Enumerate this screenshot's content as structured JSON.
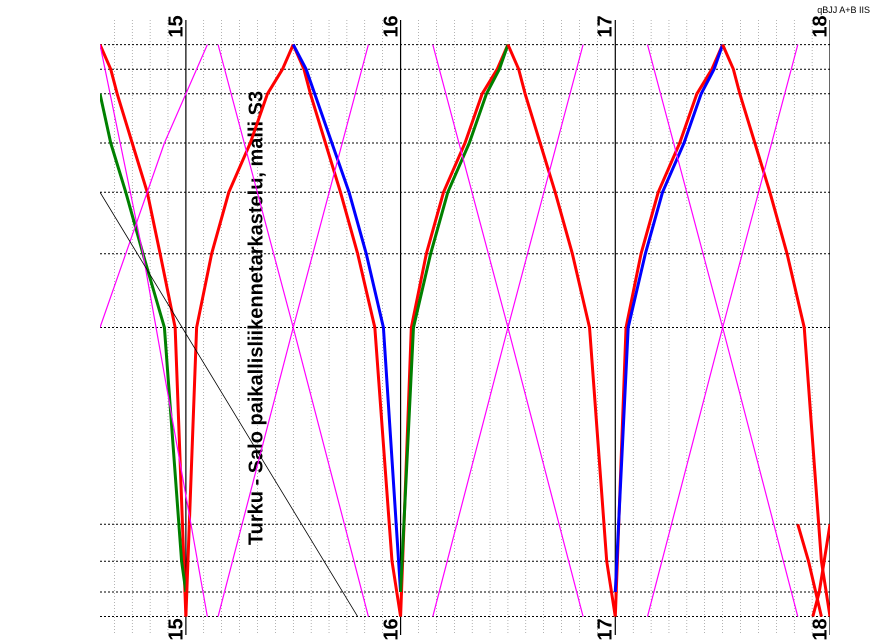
{
  "title": "Turku - Salo paikallisliikennetarkastelu, malli S3",
  "corner_text": "qBJJ A+B IIS",
  "xlim": [
    14.6,
    18
  ],
  "ylim": [
    0,
    100
  ],
  "xtick_labels": [
    "15",
    "16",
    "17",
    "18"
  ],
  "xtick_positions": [
    15,
    16,
    17,
    18
  ],
  "background_color": "#ffffff",
  "grid_major_color": "#000000",
  "grid_minor_color": "#000000",
  "grid_major_width": 1.2,
  "grid_minor_width": 0.6,
  "station_positions": [
    4,
    8,
    12,
    20,
    28,
    38,
    50,
    82,
    88,
    93,
    97
  ],
  "axis": {
    "label_fontsize": 20,
    "title_fontsize": 20
  },
  "colors": {
    "red": "#ff0000",
    "blue": "#0000ff",
    "green": "#008000",
    "magenta": "#ff00ff",
    "black": "#000000"
  },
  "line_widths": {
    "thick": 3,
    "thin": 1.2,
    "hair": 0.8
  },
  "trains": [
    {
      "color": "#ff0000",
      "width": 3,
      "points": [
        [
          14.6,
          4
        ],
        [
          14.65,
          8
        ],
        [
          14.68,
          12
        ],
        [
          14.75,
          20
        ],
        [
          14.82,
          28
        ],
        [
          14.88,
          38
        ],
        [
          14.95,
          50
        ],
        [
          15.0,
          97
        ]
      ]
    },
    {
      "color": "#008000",
      "width": 3,
      "points": [
        [
          14.6,
          12
        ],
        [
          14.65,
          20
        ],
        [
          14.72,
          28
        ],
        [
          14.8,
          38
        ],
        [
          14.9,
          50
        ],
        [
          14.98,
          88
        ],
        [
          15.0,
          93
        ]
      ]
    },
    {
      "color": "#ff0000",
      "width": 3,
      "points": [
        [
          15.0,
          97
        ],
        [
          15.05,
          50
        ],
        [
          15.12,
          38
        ],
        [
          15.2,
          28
        ],
        [
          15.3,
          20
        ],
        [
          15.38,
          12
        ],
        [
          15.45,
          8
        ],
        [
          15.5,
          4
        ]
      ]
    },
    {
      "color": "#ff0000",
      "width": 3,
      "points": [
        [
          15.5,
          4
        ],
        [
          15.55,
          8
        ],
        [
          15.58,
          12
        ],
        [
          15.65,
          20
        ],
        [
          15.72,
          28
        ],
        [
          15.8,
          38
        ],
        [
          15.88,
          50
        ],
        [
          15.96,
          88
        ],
        [
          16.0,
          97
        ]
      ]
    },
    {
      "color": "#0000ff",
      "width": 3,
      "points": [
        [
          15.5,
          4
        ],
        [
          15.56,
          8
        ],
        [
          15.6,
          12
        ],
        [
          15.68,
          20
        ],
        [
          15.76,
          28
        ],
        [
          15.84,
          38
        ],
        [
          15.92,
          50
        ],
        [
          16.0,
          93
        ]
      ]
    },
    {
      "color": "#ff0000",
      "width": 3,
      "points": [
        [
          16.0,
          97
        ],
        [
          16.05,
          50
        ],
        [
          16.12,
          38
        ],
        [
          16.2,
          28
        ],
        [
          16.3,
          20
        ],
        [
          16.38,
          12
        ],
        [
          16.45,
          8
        ],
        [
          16.5,
          4
        ]
      ]
    },
    {
      "color": "#008000",
      "width": 3,
      "points": [
        [
          16.0,
          93
        ],
        [
          16.06,
          50
        ],
        [
          16.14,
          38
        ],
        [
          16.22,
          28
        ],
        [
          16.32,
          20
        ],
        [
          16.4,
          12
        ],
        [
          16.46,
          8
        ],
        [
          16.5,
          4
        ]
      ]
    },
    {
      "color": "#ff0000",
      "width": 3,
      "points": [
        [
          16.5,
          4
        ],
        [
          16.55,
          8
        ],
        [
          16.58,
          12
        ],
        [
          16.65,
          20
        ],
        [
          16.72,
          28
        ],
        [
          16.8,
          38
        ],
        [
          16.88,
          50
        ],
        [
          16.96,
          88
        ],
        [
          17.0,
          97
        ]
      ]
    },
    {
      "color": "#ff0000",
      "width": 3,
      "points": [
        [
          17.0,
          97
        ],
        [
          17.05,
          50
        ],
        [
          17.12,
          38
        ],
        [
          17.2,
          28
        ],
        [
          17.3,
          20
        ],
        [
          17.38,
          12
        ],
        [
          17.45,
          8
        ],
        [
          17.5,
          4
        ]
      ]
    },
    {
      "color": "#0000ff",
      "width": 3,
      "points": [
        [
          17.0,
          93
        ],
        [
          17.06,
          50
        ],
        [
          17.14,
          38
        ],
        [
          17.22,
          28
        ],
        [
          17.32,
          20
        ],
        [
          17.4,
          12
        ],
        [
          17.46,
          8
        ],
        [
          17.5,
          4
        ]
      ]
    },
    {
      "color": "#ff0000",
      "width": 3,
      "points": [
        [
          17.5,
          4
        ],
        [
          17.55,
          8
        ],
        [
          17.58,
          12
        ],
        [
          17.65,
          20
        ],
        [
          17.72,
          28
        ],
        [
          17.8,
          38
        ],
        [
          17.88,
          50
        ],
        [
          17.96,
          88
        ],
        [
          18.0,
          97
        ]
      ]
    },
    {
      "color": "#ff0000",
      "width": 3,
      "points": [
        [
          17.96,
          97
        ],
        [
          17.9,
          88
        ],
        [
          17.85,
          82
        ]
      ]
    },
    {
      "color": "#ff0000",
      "width": 3,
      "points": [
        [
          18.0,
          82
        ],
        [
          17.95,
          93
        ],
        [
          17.92,
          97
        ]
      ]
    },
    {
      "color": "#ff00ff",
      "width": 1.2,
      "points": [
        [
          14.6,
          4
        ],
        [
          14.8,
          38
        ],
        [
          15.1,
          97
        ]
      ]
    },
    {
      "color": "#ff00ff",
      "width": 1.2,
      "points": [
        [
          14.6,
          50
        ],
        [
          14.9,
          20
        ],
        [
          15.1,
          4
        ]
      ]
    },
    {
      "color": "#ff00ff",
      "width": 1.2,
      "points": [
        [
          15.15,
          97
        ],
        [
          15.5,
          50
        ],
        [
          15.85,
          4
        ]
      ]
    },
    {
      "color": "#ff00ff",
      "width": 1.2,
      "points": [
        [
          15.15,
          4
        ],
        [
          15.5,
          50
        ],
        [
          15.85,
          97
        ]
      ]
    },
    {
      "color": "#ff00ff",
      "width": 1.2,
      "points": [
        [
          16.15,
          97
        ],
        [
          16.5,
          50
        ],
        [
          16.85,
          4
        ]
      ]
    },
    {
      "color": "#ff00ff",
      "width": 1.2,
      "points": [
        [
          16.15,
          4
        ],
        [
          16.5,
          50
        ],
        [
          16.85,
          97
        ]
      ]
    },
    {
      "color": "#ff00ff",
      "width": 1.2,
      "points": [
        [
          17.15,
          97
        ],
        [
          17.5,
          50
        ],
        [
          17.85,
          4
        ]
      ]
    },
    {
      "color": "#ff00ff",
      "width": 1.2,
      "points": [
        [
          17.15,
          4
        ],
        [
          17.5,
          50
        ],
        [
          17.85,
          97
        ]
      ]
    },
    {
      "color": "#000000",
      "width": 0.8,
      "points": [
        [
          14.6,
          28
        ],
        [
          15.8,
          97
        ]
      ]
    }
  ]
}
